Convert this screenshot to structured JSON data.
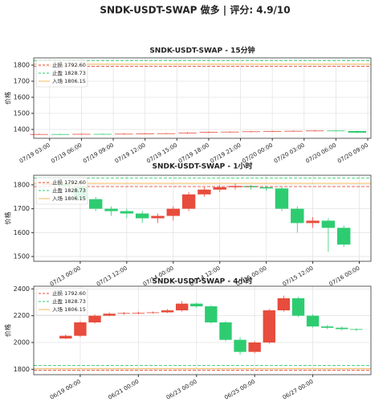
{
  "title": "SNDK-USDT-SWAP 做多 | 评分: 4.9/10",
  "chart_data": [
    {
      "type": "candlestick",
      "title": "SNDK-USDT-SWAP - 15分钟",
      "y_label": "价格",
      "grid": true,
      "up_color": "#e74c3c",
      "down_color": "#2ecc71",
      "xlim": [
        1.5,
        33.3
      ],
      "ylim": [
        1345,
        1845
      ],
      "xticks": [
        {
          "value": 3,
          "label": "07/19 03:00"
        },
        {
          "value": 6,
          "label": "07/19 06:00"
        },
        {
          "value": 9,
          "label": "07/19 09:00"
        },
        {
          "value": 12,
          "label": "07/19 12:00"
        },
        {
          "value": 15,
          "label": "07/19 15:00"
        },
        {
          "value": 18,
          "label": "07/19 18:00"
        },
        {
          "value": 21,
          "label": "07/19 21:00"
        },
        {
          "value": 24,
          "label": "07/20 00:00"
        },
        {
          "value": 27,
          "label": "07/20 03:00"
        },
        {
          "value": 30,
          "label": "07/20 06:00"
        },
        {
          "value": 33,
          "label": "07/20 09:00"
        }
      ],
      "yticks": [
        1400,
        1500,
        1600,
        1700,
        1800
      ],
      "levels": [
        {
          "label": "止损 1792.60",
          "value": 1792.6,
          "color": "#e74c3c",
          "style": "dashed"
        },
        {
          "label": "止盈 1828.73",
          "value": 1828.73,
          "color": "#2ecc71",
          "style": "dashed"
        },
        {
          "label": "入场 1806.15",
          "value": 1806.15,
          "color": "#f5b041",
          "style": "solid"
        }
      ],
      "x": [
        2,
        4,
        6,
        8,
        10,
        12,
        14,
        16,
        18,
        20,
        22,
        24,
        26,
        28,
        30,
        32
      ],
      "open": [
        1370,
        1371,
        1370,
        1372,
        1371,
        1373,
        1374,
        1376,
        1380,
        1384,
        1386,
        1388,
        1390,
        1391,
        1393,
        1390
      ],
      "high": [
        1374,
        1374,
        1375,
        1375,
        1376,
        1377,
        1379,
        1383,
        1387,
        1389,
        1391,
        1393,
        1394,
        1396,
        1396,
        1393
      ],
      "low": [
        1367,
        1367,
        1367,
        1368,
        1368,
        1370,
        1371,
        1373,
        1377,
        1381,
        1383,
        1385,
        1387,
        1388,
        1387,
        1377
      ],
      "close": [
        1371,
        1370,
        1372,
        1371,
        1373,
        1374,
        1376,
        1380,
        1384,
        1386,
        1388,
        1390,
        1391,
        1393,
        1390,
        1380
      ]
    },
    {
      "type": "candlestick",
      "title": "SNDK-USDT-SWAP - 1小时",
      "y_label": "价格",
      "grid": true,
      "up_color": "#e74c3c",
      "down_color": "#2ecc71",
      "xlim": [
        -12,
        75
      ],
      "ylim": [
        1480,
        1840
      ],
      "xticks": [
        {
          "value": 0,
          "label": "07/13 00:00"
        },
        {
          "value": 12,
          "label": "07/13 12:00"
        },
        {
          "value": 24,
          "label": "07/14 00:00"
        },
        {
          "value": 36,
          "label": "07/14 12:00"
        },
        {
          "value": 48,
          "label": "07/15 00:00"
        },
        {
          "value": 60,
          "label": "07/15 12:00"
        },
        {
          "value": 72,
          "label": "07/16 00:00"
        }
      ],
      "yticks": [
        1500,
        1600,
        1700,
        1800
      ],
      "levels": [
        {
          "label": "止损 1792.60",
          "value": 1792.6,
          "color": "#e74c3c",
          "style": "dashed"
        },
        {
          "label": "止盈 1828.73",
          "value": 1828.73,
          "color": "#2ecc71",
          "style": "dashed"
        },
        {
          "label": "入场 1806.15",
          "value": 1806.15,
          "color": "#f5b041",
          "style": "solid"
        }
      ],
      "x": [
        -8,
        -4,
        0,
        4,
        8,
        12,
        16,
        20,
        24,
        28,
        32,
        36,
        40,
        44,
        48,
        52,
        56,
        60,
        64,
        68
      ],
      "open": [
        1800,
        1805,
        1795,
        1740,
        1700,
        1690,
        1680,
        1660,
        1670,
        1700,
        1760,
        1780,
        1790,
        1795,
        1790,
        1785,
        1700,
        1640,
        1650,
        1620
      ],
      "high": [
        1815,
        1812,
        1800,
        1750,
        1710,
        1700,
        1690,
        1680,
        1710,
        1770,
        1790,
        1800,
        1805,
        1800,
        1795,
        1790,
        1710,
        1665,
        1660,
        1630
      ],
      "low": [
        1790,
        1790,
        1730,
        1690,
        1670,
        1660,
        1640,
        1640,
        1650,
        1690,
        1750,
        1770,
        1780,
        1780,
        1775,
        1690,
        1600,
        1620,
        1520,
        1540
      ],
      "close": [
        1805,
        1795,
        1740,
        1700,
        1690,
        1680,
        1660,
        1670,
        1700,
        1760,
        1780,
        1790,
        1795,
        1790,
        1785,
        1700,
        1640,
        1650,
        1620,
        1550
      ]
    },
    {
      "type": "candlestick",
      "title": "SNDK-USDT-SWAP - 4小时",
      "y_label": "价格",
      "grid": true,
      "up_color": "#e74c3c",
      "down_color": "#2ecc71",
      "xlim": [
        -1.6,
        10
      ],
      "ylim": [
        1760,
        2420
      ],
      "xticks": [
        {
          "value": 0,
          "label": "06/19 00:00"
        },
        {
          "value": 2,
          "label": "06/21 00:00"
        },
        {
          "value": 4,
          "label": "06/23 00:00"
        },
        {
          "value": 6,
          "label": "06/25 00:00"
        },
        {
          "value": 8,
          "label": "06/27 00:00"
        }
      ],
      "yticks": [
        1800,
        2000,
        2200,
        2400
      ],
      "levels": [
        {
          "label": "止损 1792.60",
          "value": 1792.6,
          "color": "#e74c3c",
          "style": "dashed"
        },
        {
          "label": "止盈 1828.73",
          "value": 1828.73,
          "color": "#2ecc71",
          "style": "dashed"
        },
        {
          "label": "入场 1806.15",
          "value": 1806.15,
          "color": "#f5b041",
          "style": "solid"
        }
      ],
      "x": [
        -0.5,
        0,
        0.5,
        1,
        1.5,
        2,
        2.5,
        3,
        3.5,
        4,
        4.5,
        5,
        5.5,
        6,
        6.5,
        7,
        7.5,
        8,
        8.5,
        9,
        9.5
      ],
      "open": [
        2030,
        2050,
        2150,
        2200,
        2215,
        2220,
        2222,
        2225,
        2240,
        2290,
        2270,
        2150,
        2020,
        1930,
        2000,
        2240,
        2330,
        2200,
        2120,
        2110,
        2100
      ],
      "high": [
        2060,
        2160,
        2210,
        2225,
        2228,
        2230,
        2232,
        2250,
        2310,
        2300,
        2280,
        2160,
        2040,
        2010,
        2250,
        2350,
        2340,
        2210,
        2130,
        2120,
        2105
      ],
      "low": [
        2025,
        2040,
        2140,
        2195,
        2205,
        2210,
        2215,
        2220,
        2230,
        2260,
        2140,
        2010,
        1910,
        1920,
        1990,
        2230,
        2190,
        2110,
        2100,
        2090,
        2085
      ],
      "close": [
        2050,
        2150,
        2200,
        2215,
        2220,
        2222,
        2225,
        2240,
        2290,
        2270,
        2150,
        2020,
        1930,
        2000,
        2240,
        2330,
        2200,
        2120,
        2110,
        2100,
        2095
      ]
    }
  ]
}
